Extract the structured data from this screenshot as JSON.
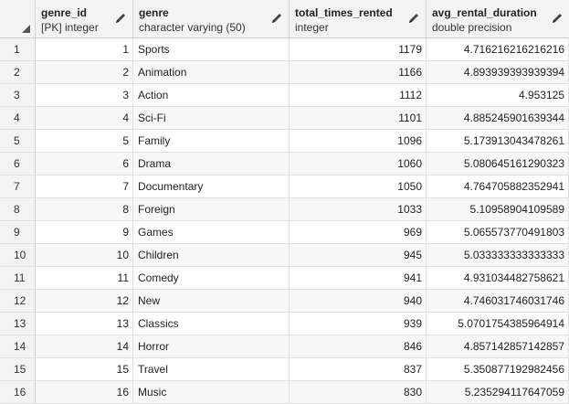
{
  "columns": [
    {
      "name": "genre_id",
      "type": "[PK] integer"
    },
    {
      "name": "genre",
      "type": "character varying (50)"
    },
    {
      "name": "total_times_rented",
      "type": "integer"
    },
    {
      "name": "avg_rental_duration",
      "type": "double precision"
    }
  ],
  "rows": [
    {
      "rownum": "1",
      "genre_id": "1",
      "genre": "Sports",
      "total_times_rented": "1179",
      "avg_rental_duration": "4.716216216216216"
    },
    {
      "rownum": "2",
      "genre_id": "2",
      "genre": "Animation",
      "total_times_rented": "1166",
      "avg_rental_duration": "4.893939393939394"
    },
    {
      "rownum": "3",
      "genre_id": "3",
      "genre": "Action",
      "total_times_rented": "1112",
      "avg_rental_duration": "4.953125"
    },
    {
      "rownum": "4",
      "genre_id": "4",
      "genre": "Sci-Fi",
      "total_times_rented": "1101",
      "avg_rental_duration": "4.885245901639344"
    },
    {
      "rownum": "5",
      "genre_id": "5",
      "genre": "Family",
      "total_times_rented": "1096",
      "avg_rental_duration": "5.173913043478261"
    },
    {
      "rownum": "6",
      "genre_id": "6",
      "genre": "Drama",
      "total_times_rented": "1060",
      "avg_rental_duration": "5.080645161290323"
    },
    {
      "rownum": "7",
      "genre_id": "7",
      "genre": "Documentary",
      "total_times_rented": "1050",
      "avg_rental_duration": "4.764705882352941"
    },
    {
      "rownum": "8",
      "genre_id": "8",
      "genre": "Foreign",
      "total_times_rented": "1033",
      "avg_rental_duration": "5.10958904109589"
    },
    {
      "rownum": "9",
      "genre_id": "9",
      "genre": "Games",
      "total_times_rented": "969",
      "avg_rental_duration": "5.065573770491803"
    },
    {
      "rownum": "10",
      "genre_id": "10",
      "genre": "Children",
      "total_times_rented": "945",
      "avg_rental_duration": "5.033333333333333"
    },
    {
      "rownum": "11",
      "genre_id": "11",
      "genre": "Comedy",
      "total_times_rented": "941",
      "avg_rental_duration": "4.931034482758621"
    },
    {
      "rownum": "12",
      "genre_id": "12",
      "genre": "New",
      "total_times_rented": "940",
      "avg_rental_duration": "4.746031746031746"
    },
    {
      "rownum": "13",
      "genre_id": "13",
      "genre": "Classics",
      "total_times_rented": "939",
      "avg_rental_duration": "5.0701754385964914"
    },
    {
      "rownum": "14",
      "genre_id": "14",
      "genre": "Horror",
      "total_times_rented": "846",
      "avg_rental_duration": "4.857142857142857"
    },
    {
      "rownum": "15",
      "genre_id": "15",
      "genre": "Travel",
      "total_times_rented": "837",
      "avg_rental_duration": "5.350877192982456"
    },
    {
      "rownum": "16",
      "genre_id": "16",
      "genre": "Music",
      "total_times_rented": "830",
      "avg_rental_duration": "5.235294117647059"
    }
  ],
  "icons": {
    "edit": "pencil-icon",
    "corner": "select-all-triangle-icon"
  },
  "colors": {
    "header_bg": "#f3f3f3",
    "alt_row_bg": "#f7f7f7",
    "accent": "#326690"
  }
}
